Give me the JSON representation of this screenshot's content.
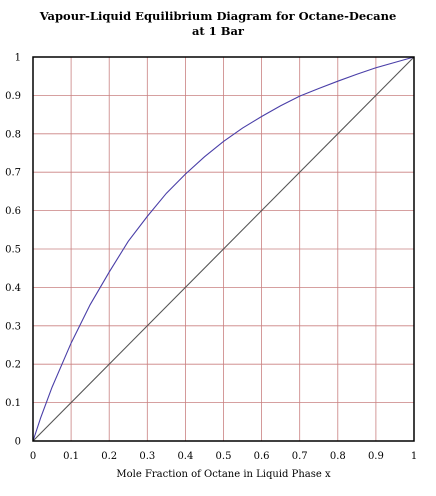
{
  "chart_data": {
    "type": "line",
    "title_lines": [
      "Vapour-Liquid Equilibrium Diagram for Octane-Decane",
      "at 1 Bar"
    ],
    "xlabel": "Mole Fraction of Octane in Liquid Phase x",
    "ylabel": "",
    "xlim": [
      0,
      1
    ],
    "ylim": [
      0,
      1
    ],
    "x_ticks": [
      "0",
      "0.1",
      "0.2",
      "0.3",
      "0.4",
      "0.5",
      "0.6",
      "0.7",
      "0.8",
      "0.9",
      "1"
    ],
    "y_ticks": [
      "0",
      "0.1",
      "0.2",
      "0.3",
      "0.4",
      "0.5",
      "0.6",
      "0.7",
      "0.8",
      "0.9",
      "1"
    ],
    "grid": true,
    "grid_color": "#c98080",
    "frame_color": "#000000",
    "series": [
      {
        "color": "#4a3fa8",
        "x": [
          0,
          0.02,
          0.05,
          0.1,
          0.15,
          0.2,
          0.25,
          0.3,
          0.35,
          0.4,
          0.45,
          0.5,
          0.55,
          0.6,
          0.65,
          0.7,
          0.75,
          0.8,
          0.85,
          0.9,
          0.95,
          1
        ],
        "y": [
          0,
          0.06,
          0.14,
          0.255,
          0.355,
          0.44,
          0.52,
          0.585,
          0.645,
          0.695,
          0.74,
          0.78,
          0.815,
          0.845,
          0.873,
          0.898,
          0.918,
          0.937,
          0.955,
          0.972,
          0.986,
          1
        ]
      },
      {
        "color": "#555555",
        "x": [
          0,
          1
        ],
        "y": [
          0,
          1
        ]
      }
    ]
  }
}
